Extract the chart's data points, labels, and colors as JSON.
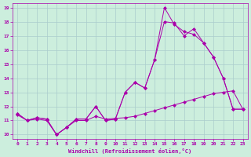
{
  "xlabel": "Windchill (Refroidissement éolien,°C)",
  "bg_color": "#cceedd",
  "grid_color": "#aacccc",
  "line_color": "#aa00aa",
  "xlim": [
    -0.5,
    23.5
  ],
  "ylim": [
    9.7,
    19.3
  ],
  "xticks": [
    0,
    1,
    2,
    3,
    4,
    5,
    6,
    7,
    8,
    9,
    10,
    11,
    12,
    13,
    14,
    15,
    16,
    17,
    18,
    19,
    20,
    21,
    22,
    23
  ],
  "yticks": [
    10,
    11,
    12,
    13,
    14,
    15,
    16,
    17,
    18,
    19
  ],
  "line1_x": [
    0,
    1,
    2,
    3,
    4,
    5,
    6,
    7,
    8,
    9,
    10,
    11,
    12,
    13,
    14,
    15,
    16,
    17,
    18,
    19,
    20,
    21,
    22,
    23
  ],
  "line1_y": [
    11.5,
    11.0,
    11.2,
    11.1,
    10.0,
    10.5,
    11.1,
    11.1,
    12.0,
    11.0,
    11.1,
    13.0,
    13.7,
    13.3,
    15.3,
    19.0,
    17.8,
    17.3,
    17.1,
    16.5,
    15.5,
    14.0,
    11.8,
    11.8
  ],
  "line2_x": [
    0,
    1,
    2,
    3,
    4,
    5,
    6,
    7,
    8,
    9,
    10,
    11,
    12,
    13,
    14,
    15,
    16,
    17,
    18,
    19,
    20,
    21,
    22,
    23
  ],
  "line2_y": [
    11.5,
    11.0,
    11.2,
    11.1,
    10.0,
    10.5,
    11.1,
    11.1,
    12.0,
    11.0,
    11.1,
    13.0,
    13.7,
    13.3,
    15.3,
    18.0,
    17.9,
    17.0,
    17.5,
    16.5,
    15.5,
    14.0,
    11.8,
    11.8
  ],
  "line3_x": [
    0,
    1,
    2,
    3,
    4,
    5,
    6,
    7,
    8,
    9,
    10,
    11,
    12,
    13,
    14,
    15,
    16,
    17,
    18,
    19,
    20,
    21,
    22,
    23
  ],
  "line3_y": [
    11.4,
    11.0,
    11.1,
    11.0,
    10.0,
    10.5,
    11.0,
    11.0,
    11.3,
    11.1,
    11.15,
    11.2,
    11.3,
    11.5,
    11.7,
    11.9,
    12.1,
    12.3,
    12.5,
    12.7,
    12.9,
    13.0,
    13.1,
    11.8
  ],
  "markersize": 2.5
}
